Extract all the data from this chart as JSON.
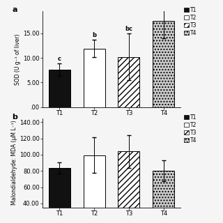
{
  "panel_a": {
    "categories": [
      "T1",
      "T2",
      "T3",
      "T4"
    ],
    "values": [
      7.6,
      11.9,
      10.2,
      17.5
    ],
    "errors": [
      1.3,
      1.8,
      4.8,
      3.5
    ],
    "ylabel": "SOD (U g⁻¹ of liver)",
    "ylim": [
      0,
      19.5
    ],
    "yticks": [
      0.0,
      5.0,
      10.0,
      15.0
    ],
    "yticklabels": [
      ".00",
      "5.00",
      "10.00",
      "15.00"
    ],
    "annotations": [
      "c",
      "b",
      "bc",
      ""
    ],
    "panel_label": "a",
    "hatches": [
      "",
      "",
      "////",
      "...."
    ],
    "bar_colors": [
      "#111111",
      "#ffffff",
      "#ffffff",
      "#cccccc"
    ],
    "edgecolors": [
      "black",
      "black",
      "black",
      "black"
    ]
  },
  "panel_b": {
    "categories": [
      "T1",
      "T2",
      "T3",
      "T4"
    ],
    "values": [
      83.5,
      99.5,
      104.0,
      80.5
    ],
    "errors": [
      7.0,
      22.0,
      20.0,
      13.0
    ],
    "ylabel": "Malondialdehyde: MDA (μM L⁻¹)",
    "ylim": [
      35,
      145
    ],
    "yticks": [
      40.0,
      60.0,
      80.0,
      100.0,
      120.0,
      140.0
    ],
    "yticklabels": [
      "40.00",
      "60.00",
      "80.00",
      "100.00",
      "120.00",
      "140.00"
    ],
    "panel_label": "b",
    "hatches": [
      "",
      "",
      "////",
      "...."
    ],
    "bar_colors": [
      "#111111",
      "#ffffff",
      "#ffffff",
      "#cccccc"
    ],
    "edgecolors": [
      "black",
      "black",
      "black",
      "black"
    ]
  },
  "legend_patches_a": {
    "facecolors": [
      "#111111",
      "#ffffff",
      "#ffffff",
      "#cccccc"
    ],
    "hatches": [
      "",
      "",
      "////",
      "...."
    ],
    "labels": [
      "T1",
      "T2",
      "T3",
      "T4"
    ]
  },
  "legend_patches_b": {
    "facecolors": [
      "#111111",
      "#ffffff",
      "#ffffff",
      "#cccccc"
    ],
    "hatches": [
      "",
      "",
      "////",
      "...."
    ],
    "labels": [
      "T1",
      "T2",
      "T3",
      "T4"
    ]
  },
  "background_color": "#f5f5f5",
  "fontsize": 6.0
}
